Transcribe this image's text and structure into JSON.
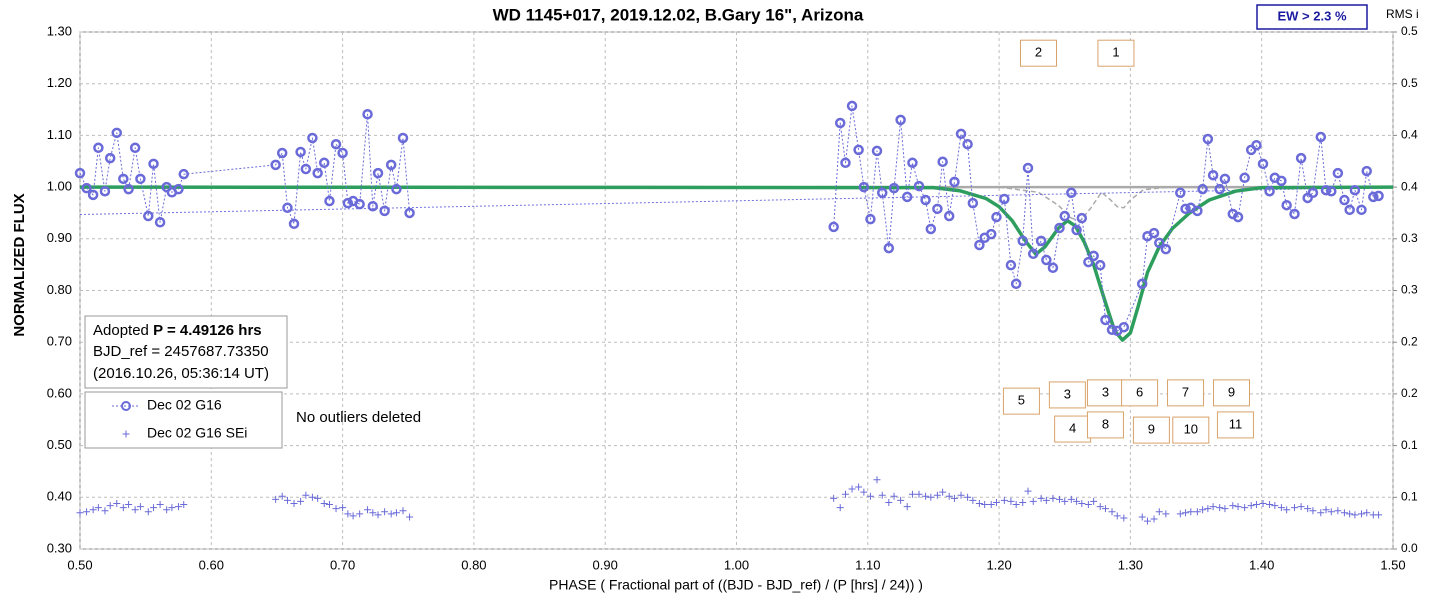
{
  "chart_data": {
    "type": "line",
    "title": "WD 1145+017, 2019.12.02, B.Gary 16\", Arizona",
    "xlabel": "PHASE ( Fractional part of ((BJD - BJD_ref) / (P [hrs] / 24)) )",
    "ylabel": "NORMALIZED FLUX",
    "y2label": "RMS i",
    "badge": "EW > 2.3 %",
    "note": "No outliers deleted",
    "info": {
      "prefix": "Adopted",
      "bold": "P = 4.49126 hrs",
      "lines": [
        "BJD_ref = 2457687.73350",
        "(2016.10.26, 05:36:14 UT)"
      ]
    },
    "xlim": [
      0.5,
      1.5
    ],
    "ylim": [
      0.3,
      1.3
    ],
    "y2lim": [
      0,
      0.5
    ],
    "grid": true,
    "xticks": [
      {
        "value": 0.5,
        "label": "0.50"
      },
      {
        "value": 0.6,
        "label": "0.60"
      },
      {
        "value": 0.7,
        "label": "0.70"
      },
      {
        "value": 0.8,
        "label": "0.80"
      },
      {
        "value": 0.9,
        "label": "0.90"
      },
      {
        "value": 1.0,
        "label": "1.00"
      },
      {
        "value": 1.1,
        "label": "1.10"
      },
      {
        "value": 1.2,
        "label": "1.20"
      },
      {
        "value": 1.3,
        "label": "1.30"
      },
      {
        "value": 1.4,
        "label": "1.40"
      },
      {
        "value": 1.5,
        "label": "1.50"
      }
    ],
    "yticks": [
      {
        "value": 0.3,
        "label": "0.30"
      },
      {
        "value": 0.4,
        "label": "0.40"
      },
      {
        "value": 0.5,
        "label": "0.50"
      },
      {
        "value": 0.6,
        "label": "0.60"
      },
      {
        "value": 0.7,
        "label": "0.70"
      },
      {
        "value": 0.8,
        "label": "0.80"
      },
      {
        "value": 0.9,
        "label": "0.90"
      },
      {
        "value": 1.0,
        "label": "1.00"
      },
      {
        "value": 1.1,
        "label": "1.10"
      },
      {
        "value": 1.2,
        "label": "1.20"
      },
      {
        "value": 1.3,
        "label": "1.30"
      }
    ],
    "y2ticks": [
      {
        "value": 0,
        "label": "0.0"
      },
      {
        "value": 0.05,
        "label": "0.1"
      },
      {
        "value": 0.1,
        "label": "0.1"
      },
      {
        "value": 0.15,
        "label": "0.2"
      },
      {
        "value": 0.2,
        "label": "0.2"
      },
      {
        "value": 0.25,
        "label": "0.3"
      },
      {
        "value": 0.3,
        "label": "0.3"
      },
      {
        "value": 0.35,
        "label": "0.4"
      },
      {
        "value": 0.4,
        "label": "0.4"
      },
      {
        "value": 0.45,
        "label": "0.5"
      },
      {
        "value": 0.5,
        "label": "0.5"
      }
    ],
    "series": [
      {
        "style": "line",
        "color": "#aaaaaa",
        "width": 2.5,
        "x": [
          1.06,
          1.5
        ],
        "values": [
          1.0,
          1.0
        ]
      },
      {
        "style": "dashed",
        "color": "#aaaaaa",
        "width": 1.5,
        "x": [
          1.2,
          1.23,
          1.245,
          1.255,
          1.262,
          1.27,
          1.278,
          1.285,
          1.29,
          1.295,
          1.3,
          1.31,
          1.33
        ],
        "values": [
          1.0,
          0.99,
          0.965,
          0.94,
          0.935,
          0.96,
          0.99,
          0.975,
          0.962,
          0.96,
          0.975,
          0.995,
          1.0
        ]
      },
      {
        "style": "dotted",
        "color": "#7070e0",
        "width": 1,
        "x": [
          0.5,
          1.5
        ],
        "values": [
          0.947,
          1.0
        ]
      },
      {
        "style": "line",
        "color": "#2e9e5e",
        "width": 3.5,
        "x": [
          0.5,
          1.15,
          1.17,
          1.19,
          1.2,
          1.21,
          1.22,
          1.228,
          1.235,
          1.245,
          1.252,
          1.258,
          1.265,
          1.272,
          1.28,
          1.288,
          1.294,
          1.3,
          1.306,
          1.313,
          1.322,
          1.332,
          1.345,
          1.36,
          1.38,
          1.4,
          1.5
        ],
        "values": [
          1.0,
          0.999,
          0.993,
          0.978,
          0.962,
          0.935,
          0.896,
          0.87,
          0.885,
          0.92,
          0.935,
          0.925,
          0.893,
          0.85,
          0.785,
          0.722,
          0.704,
          0.718,
          0.77,
          0.835,
          0.885,
          0.92,
          0.95,
          0.975,
          0.992,
          0.999,
          1.0
        ]
      },
      {
        "name": "Dec 02 G16",
        "style": "markers",
        "color": "#6a6ad8",
        "x": [
          0.5,
          0.505,
          0.51,
          0.514,
          0.519,
          0.523,
          0.528,
          0.533,
          0.537,
          0.542,
          0.546,
          0.552,
          0.556,
          0.561,
          0.566,
          0.57,
          0.575,
          0.579,
          0.649,
          0.654,
          0.658,
          0.663,
          0.668,
          0.672,
          0.677,
          0.681,
          0.686,
          0.69,
          0.695,
          0.7,
          0.704,
          0.708,
          0.713,
          0.719,
          0.723,
          0.727,
          0.732,
          0.737,
          0.741,
          0.746,
          0.751,
          1.074,
          1.079,
          1.083,
          1.088,
          1.093,
          1.097,
          1.102,
          1.107,
          1.111,
          1.116,
          1.12,
          1.125,
          1.13,
          1.134,
          1.139,
          1.144,
          1.148,
          1.153,
          1.157,
          1.162,
          1.166,
          1.171,
          1.176,
          1.18,
          1.185,
          1.189,
          1.194,
          1.198,
          1.204,
          1.209,
          1.213,
          1.218,
          1.222,
          1.226,
          1.232,
          1.236,
          1.241,
          1.246,
          1.25,
          1.255,
          1.259,
          1.263,
          1.268,
          1.272,
          1.277,
          1.281,
          1.286,
          1.29,
          1.295,
          1.309,
          1.313,
          1.318,
          1.322,
          1.327,
          1.338,
          1.342,
          1.346,
          1.351,
          1.355,
          1.359,
          1.363,
          1.368,
          1.372,
          1.378,
          1.382,
          1.387,
          1.392,
          1.396,
          1.401,
          1.406,
          1.41,
          1.415,
          1.419,
          1.425,
          1.43,
          1.435,
          1.439,
          1.445,
          1.449,
          1.453,
          1.458,
          1.463,
          1.467,
          1.471,
          1.476,
          1.48,
          1.485,
          1.489
        ],
        "values": [
          1.027,
          0.998,
          0.985,
          1.076,
          0.992,
          1.056,
          1.105,
          1.016,
          0.996,
          1.076,
          1.016,
          0.944,
          1.045,
          0.932,
          1.0,
          0.99,
          0.996,
          1.025,
          1.043,
          1.066,
          0.96,
          0.929,
          1.068,
          1.035,
          1.095,
          1.027,
          1.047,
          0.973,
          1.083,
          1.066,
          0.969,
          0.973,
          0.967,
          1.141,
          0.963,
          1.027,
          0.954,
          1.043,
          0.996,
          1.095,
          0.95,
          0.923,
          1.124,
          1.047,
          1.157,
          1.072,
          1.0,
          0.938,
          1.07,
          0.989,
          0.882,
          0.998,
          1.13,
          0.981,
          1.047,
          1.002,
          0.975,
          0.919,
          0.958,
          1.049,
          0.944,
          1.01,
          1.103,
          1.083,
          0.969,
          0.888,
          0.902,
          0.909,
          0.942,
          0.977,
          0.849,
          0.813,
          0.896,
          1.037,
          0.871,
          0.896,
          0.859,
          0.844,
          0.921,
          0.944,
          0.989,
          0.917,
          0.94,
          0.855,
          0.867,
          0.849,
          0.743,
          0.724,
          0.722,
          0.729,
          0.813,
          0.905,
          0.911,
          0.892,
          0.88,
          0.989,
          0.958,
          0.96,
          0.954,
          0.996,
          1.093,
          1.023,
          0.996,
          1.016,
          0.948,
          0.942,
          1.018,
          1.072,
          1.081,
          1.045,
          0.992,
          1.018,
          1.012,
          0.965,
          0.948,
          1.056,
          0.979,
          0.989,
          1.097,
          0.994,
          0.992,
          1.027,
          0.975,
          0.956,
          0.994,
          0.956,
          1.031,
          0.981,
          0.983
        ]
      },
      {
        "name": "Dec 02 G16 SEi",
        "style": "plus",
        "axis": "y2",
        "color": "#6a6ad8",
        "x": [
          0.5,
          0.505,
          0.51,
          0.514,
          0.519,
          0.523,
          0.528,
          0.533,
          0.537,
          0.542,
          0.546,
          0.552,
          0.556,
          0.561,
          0.566,
          0.57,
          0.575,
          0.579,
          0.649,
          0.654,
          0.658,
          0.663,
          0.668,
          0.672,
          0.677,
          0.681,
          0.686,
          0.69,
          0.695,
          0.7,
          0.704,
          0.708,
          0.713,
          0.719,
          0.723,
          0.727,
          0.732,
          0.737,
          0.741,
          0.746,
          0.751,
          1.074,
          1.079,
          1.083,
          1.088,
          1.093,
          1.097,
          1.102,
          1.107,
          1.111,
          1.116,
          1.12,
          1.125,
          1.13,
          1.134,
          1.139,
          1.144,
          1.148,
          1.153,
          1.157,
          1.162,
          1.166,
          1.171,
          1.176,
          1.18,
          1.185,
          1.189,
          1.194,
          1.198,
          1.204,
          1.209,
          1.213,
          1.218,
          1.222,
          1.226,
          1.232,
          1.236,
          1.241,
          1.246,
          1.25,
          1.255,
          1.259,
          1.263,
          1.268,
          1.272,
          1.277,
          1.281,
          1.286,
          1.29,
          1.295,
          1.309,
          1.313,
          1.318,
          1.322,
          1.327,
          1.338,
          1.342,
          1.346,
          1.351,
          1.355,
          1.359,
          1.363,
          1.368,
          1.372,
          1.378,
          1.382,
          1.387,
          1.392,
          1.396,
          1.401,
          1.406,
          1.41,
          1.415,
          1.419,
          1.425,
          1.43,
          1.435,
          1.439,
          1.445,
          1.449,
          1.453,
          1.458,
          1.463,
          1.467,
          1.471,
          1.476,
          1.48,
          1.485,
          1.489
        ],
        "values": [
          0.035,
          0.036,
          0.038,
          0.04,
          0.037,
          0.042,
          0.044,
          0.04,
          0.043,
          0.038,
          0.041,
          0.036,
          0.04,
          0.043,
          0.038,
          0.04,
          0.041,
          0.043,
          0.048,
          0.051,
          0.047,
          0.044,
          0.046,
          0.052,
          0.05,
          0.049,
          0.044,
          0.043,
          0.039,
          0.04,
          0.034,
          0.032,
          0.034,
          0.038,
          0.035,
          0.033,
          0.036,
          0.034,
          0.035,
          0.037,
          0.031,
          0.049,
          0.04,
          0.053,
          0.058,
          0.06,
          0.055,
          0.051,
          0.067,
          0.052,
          0.045,
          0.051,
          0.047,
          0.041,
          0.053,
          0.053,
          0.051,
          0.05,
          0.052,
          0.055,
          0.051,
          0.049,
          0.052,
          0.05,
          0.047,
          0.044,
          0.043,
          0.043,
          0.045,
          0.047,
          0.046,
          0.043,
          0.045,
          0.056,
          0.046,
          0.049,
          0.047,
          0.049,
          0.048,
          0.046,
          0.048,
          0.046,
          0.044,
          0.043,
          0.046,
          0.041,
          0.039,
          0.036,
          0.032,
          0.03,
          0.031,
          0.027,
          0.029,
          0.036,
          0.034,
          0.034,
          0.035,
          0.036,
          0.036,
          0.038,
          0.039,
          0.041,
          0.04,
          0.039,
          0.042,
          0.041,
          0.04,
          0.042,
          0.043,
          0.044,
          0.043,
          0.042,
          0.04,
          0.038,
          0.04,
          0.041,
          0.039,
          0.037,
          0.035,
          0.038,
          0.036,
          0.037,
          0.035,
          0.034,
          0.033,
          0.034,
          0.035,
          0.033,
          0.033
        ]
      }
    ],
    "annotations": [
      {
        "text": "2",
        "x": 1.23,
        "y": 1.259
      },
      {
        "text": "1",
        "x": 1.289,
        "y": 1.259
      },
      {
        "text": "5",
        "x": 1.217,
        "y": 0.586
      },
      {
        "text": "3",
        "x": 1.252,
        "y": 0.598
      },
      {
        "text": "3",
        "x": 1.281,
        "y": 0.602
      },
      {
        "text": "6",
        "x": 1.307,
        "y": 0.602
      },
      {
        "text": "7",
        "x": 1.342,
        "y": 0.602
      },
      {
        "text": "9",
        "x": 1.377,
        "y": 0.602
      },
      {
        "text": "4",
        "x": 1.256,
        "y": 0.532
      },
      {
        "text": "8",
        "x": 1.281,
        "y": 0.54
      },
      {
        "text": "9",
        "x": 1.316,
        "y": 0.53
      },
      {
        "text": "10",
        "x": 1.346,
        "y": 0.53
      },
      {
        "text": "11",
        "x": 1.38,
        "y": 0.54
      }
    ]
  }
}
